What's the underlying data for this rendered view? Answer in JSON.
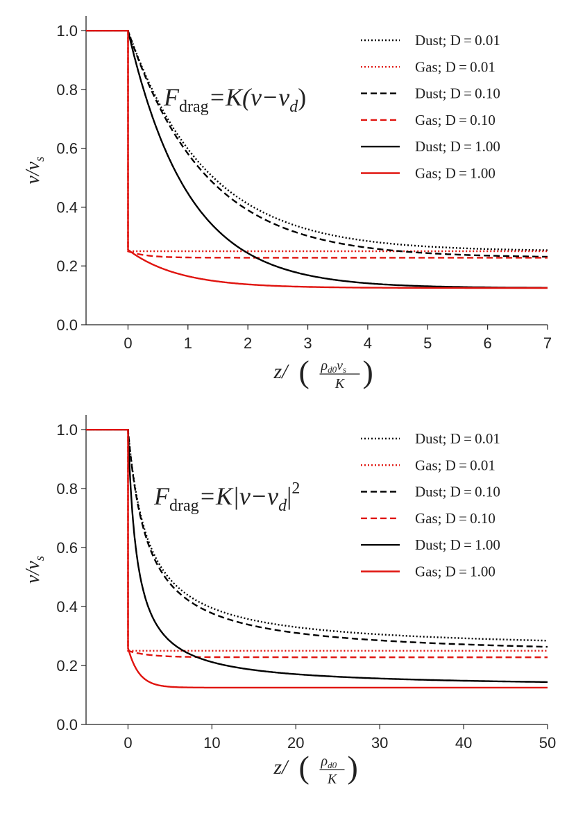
{
  "chart_data": [
    {
      "type": "line",
      "title": "",
      "equation": {
        "lhs": "F",
        "lhs_sub": "drag",
        "rhs": "=K(v−v",
        "rhs_sub": "d",
        "rhs_tail": ")",
        "sup": ""
      },
      "xlabel": {
        "num": "z/",
        "frac_num": "ρ",
        "frac_num_sub": "d0",
        "frac_num_tail": "v",
        "frac_num_tail_sub": "s",
        "frac_den": "K"
      },
      "ylabel": {
        "main": "v/v",
        "sub": "s"
      },
      "xlim": [
        -0.7,
        7
      ],
      "ylim": [
        0,
        1.05
      ],
      "xticks": [
        "0",
        "1",
        "2",
        "3",
        "4",
        "5",
        "6",
        "7"
      ],
      "yticks": [
        "0.0",
        "0.2",
        "0.4",
        "0.6",
        "0.8",
        "1.0"
      ],
      "series": [
        {
          "name": "Dust; D = 0.01",
          "color": "#000000",
          "style": "dotted",
          "kind": "dust",
          "start": 0,
          "a": 0.25,
          "r": 1.3
        },
        {
          "name": "Gas; D = 0.01",
          "color": "#e0140f",
          "style": "dotted",
          "kind": "gas",
          "start": 0,
          "a": 0.25,
          "peak": 0.25,
          "r": 0.1
        },
        {
          "name": "Dust; D = 0.10",
          "color": "#000000",
          "style": "dashed",
          "kind": "dust",
          "start": 0,
          "a": 0.228,
          "r": 1.28
        },
        {
          "name": "Gas; D = 0.10",
          "color": "#e0140f",
          "style": "dashed",
          "kind": "gas",
          "start": 0,
          "a": 0.228,
          "peak": 0.25,
          "r": 0.3
        },
        {
          "name": "Dust; D = 1.00",
          "color": "#000000",
          "style": "solid",
          "kind": "dust",
          "start": 0,
          "a": 0.125,
          "r": 1.0
        },
        {
          "name": "Gas; D = 1.00",
          "color": "#e0140f",
          "style": "solid",
          "kind": "gas",
          "start": 0,
          "a": 0.125,
          "peak": 0.255,
          "r": 0.85
        }
      ]
    },
    {
      "type": "line",
      "title": "",
      "equation": {
        "lhs": "F",
        "lhs_sub": "drag",
        "rhs": "=K|v−v",
        "rhs_sub": "d",
        "rhs_tail": "|",
        "sup": "2"
      },
      "xlabel": {
        "num": "z/",
        "frac_num": "ρ",
        "frac_num_sub": "d0",
        "frac_num_tail": "",
        "frac_num_tail_sub": "",
        "frac_den": "K"
      },
      "ylabel": {
        "main": "v/v",
        "sub": "s"
      },
      "xlim": [
        -5,
        50
      ],
      "ylim": [
        0,
        1.05
      ],
      "xticks": [
        "0",
        "10",
        "20",
        "30",
        "40",
        "50"
      ],
      "yticks": [
        "0.0",
        "0.2",
        "0.4",
        "0.6",
        "0.8",
        "1.0"
      ],
      "series": [
        {
          "name": "Dust; D = 0.01",
          "color": "#000000",
          "style": "dotted",
          "kind": "dust2",
          "a": 0.25,
          "b": 0.235
        },
        {
          "name": "Gas; D = 0.01",
          "color": "#e0140f",
          "style": "dotted",
          "kind": "gas",
          "a": 0.25,
          "peak": 0.25,
          "r": 1
        },
        {
          "name": "Dust; D = 0.10",
          "color": "#000000",
          "style": "dashed",
          "kind": "dust2",
          "a": 0.228,
          "b": 0.225
        },
        {
          "name": "Gas; D = 0.10",
          "color": "#e0140f",
          "style": "dashed",
          "kind": "gas",
          "a": 0.228,
          "peak": 0.25,
          "r": 2.5
        },
        {
          "name": "Dust; D = 1.00",
          "color": "#000000",
          "style": "solid",
          "kind": "dust2",
          "a": 0.125,
          "b": 0.115
        },
        {
          "name": "Gas; D = 1.00",
          "color": "#e0140f",
          "style": "solid",
          "kind": "gas",
          "a": 0.125,
          "peak": 0.26,
          "r": 1.3
        }
      ]
    }
  ]
}
